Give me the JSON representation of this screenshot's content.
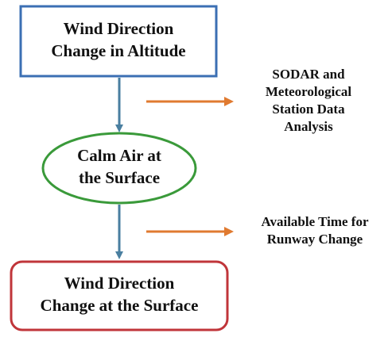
{
  "nodes": [
    {
      "lines": [
        "Wind Direction",
        "Change in Altitude"
      ]
    },
    {
      "lines": [
        "Calm Air at",
        "the Surface"
      ]
    },
    {
      "lines": [
        "Wind Direction",
        "Change at the Surface"
      ]
    }
  ],
  "notes": [
    {
      "lines": [
        "SODAR and",
        "Meteorological",
        "Station Data",
        "Analysis"
      ]
    },
    {
      "lines": [
        "Available Time for",
        "Runway Change"
      ]
    }
  ]
}
